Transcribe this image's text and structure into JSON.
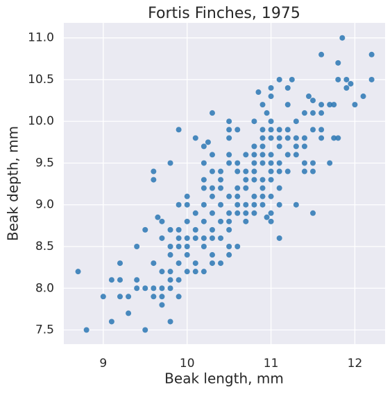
{
  "chart_data": {
    "type": "scatter",
    "title": "Fortis Finches, 1975",
    "x_label": "Beak length, mm",
    "y_label": "Beak depth, mm",
    "color": "#2a77b4",
    "grid": true,
    "xlim": [
      8.53,
      12.36
    ],
    "ylim": [
      7.33,
      11.18
    ],
    "xticks": [
      9,
      10,
      11,
      12
    ],
    "yticks": [
      7.5,
      {
        "value": 8,
        "label": "8.0"
      },
      8.5,
      {
        "value": 9,
        "label": "9.0"
      },
      9.5,
      {
        "value": 10,
        "label": "10.0"
      },
      10.5,
      {
        "value": 11,
        "label": "11.0"
      }
    ],
    "x": [
      8.7,
      8.8,
      9.0,
      9.1,
      9.1,
      9.2,
      9.2,
      9.2,
      9.3,
      9.3,
      9.4,
      9.4,
      9.4,
      9.5,
      9.5,
      9.5,
      9.6,
      9.6,
      9.6,
      9.6,
      9.6,
      9.65,
      9.7,
      9.7,
      9.7,
      9.7,
      9.7,
      9.7,
      9.8,
      9.8,
      9.8,
      9.8,
      9.8,
      9.8,
      9.8,
      9.8,
      9.9,
      9.9,
      9.9,
      9.9,
      9.9,
      9.9,
      9.9,
      9.9,
      10.0,
      10.0,
      10.0,
      10.0,
      10.0,
      10.0,
      10.0,
      10.1,
      10.1,
      10.1,
      10.1,
      10.1,
      10.1,
      10.2,
      10.2,
      10.2,
      10.2,
      10.2,
      10.2,
      10.2,
      10.2,
      10.2,
      10.25,
      10.3,
      10.3,
      10.3,
      10.3,
      10.3,
      10.3,
      10.3,
      10.3,
      10.3,
      10.3,
      10.4,
      10.4,
      10.4,
      10.4,
      10.4,
      10.4,
      10.4,
      10.5,
      10.5,
      10.5,
      10.5,
      10.5,
      10.5,
      10.5,
      10.5,
      10.5,
      10.5,
      10.5,
      10.6,
      10.6,
      10.6,
      10.6,
      10.6,
      10.6,
      10.6,
      10.6,
      10.7,
      10.7,
      10.7,
      10.7,
      10.7,
      10.7,
      10.7,
      10.8,
      10.8,
      10.8,
      10.8,
      10.8,
      10.8,
      10.8,
      10.8,
      10.8,
      10.85,
      10.9,
      10.9,
      10.9,
      10.9,
      10.9,
      10.9,
      10.9,
      10.9,
      10.9,
      10.9,
      10.95,
      10.95,
      11.0,
      11.0,
      11.0,
      11.0,
      11.0,
      11.0,
      11.0,
      11.0,
      11.0,
      11.0,
      11.0,
      11.0,
      11.1,
      11.1,
      11.1,
      11.1,
      11.1,
      11.1,
      11.1,
      11.1,
      11.1,
      11.2,
      11.2,
      11.2,
      11.2,
      11.2,
      11.2,
      11.25,
      11.3,
      11.3,
      11.3,
      11.3,
      11.3,
      11.4,
      11.4,
      11.4,
      11.4,
      11.45,
      11.5,
      11.4,
      11.5,
      11.5,
      11.5,
      11.5,
      11.5,
      11.6,
      11.6,
      11.6,
      11.6,
      11.6,
      11.7,
      11.7,
      11.75,
      11.8,
      11.8,
      11.85,
      11.75,
      11.9,
      11.9,
      11.95,
      11.8,
      12.0,
      12.1,
      12.2,
      12.2
    ],
    "y": [
      8.2,
      7.5,
      7.9,
      7.6,
      8.1,
      8.3,
      8.1,
      7.9,
      7.9,
      7.7,
      8.5,
      8.1,
      8.0,
      8.7,
      8.0,
      7.5,
      9.4,
      9.3,
      8.3,
      8.0,
      7.9,
      8.85,
      8.8,
      8.0,
      7.9,
      7.8,
      8.2,
      8.6,
      9.5,
      8.7,
      8.5,
      8.4,
      8.2,
      8.1,
      8.0,
      7.6,
      9.9,
      9.0,
      8.7,
      8.6,
      8.5,
      8.3,
      8.1,
      7.9,
      9.1,
      9.0,
      8.6,
      8.5,
      8.4,
      8.2,
      8.8,
      9.8,
      8.9,
      8.7,
      8.6,
      8.3,
      8.2,
      9.7,
      9.5,
      9.3,
      9.2,
      9.0,
      8.8,
      8.6,
      8.5,
      8.2,
      9.75,
      10.1,
      9.6,
      9.4,
      9.2,
      9.1,
      8.9,
      8.7,
      8.6,
      8.4,
      8.3,
      9.4,
      9.3,
      9.2,
      9.0,
      8.8,
      8.6,
      8.3,
      10.0,
      9.9,
      9.8,
      9.6,
      9.5,
      9.1,
      8.9,
      8.8,
      8.7,
      8.5,
      8.4,
      9.9,
      9.5,
      9.4,
      9.2,
      9.1,
      9.0,
      8.9,
      8.5,
      9.6,
      9.4,
      9.3,
      9.2,
      9.0,
      8.9,
      8.8,
      10.0,
      9.7,
      9.6,
      9.5,
      9.4,
      9.3,
      9.1,
      9.0,
      8.9,
      10.35,
      10.2,
      9.9,
      9.8,
      9.7,
      9.6,
      9.5,
      9.3,
      9.2,
      9.1,
      9.0,
      10.1,
      8.85,
      10.4,
      10.3,
      10.0,
      9.9,
      9.8,
      9.6,
      9.5,
      9.4,
      9.3,
      9.1,
      8.9,
      8.8,
      10.5,
      9.9,
      9.8,
      9.7,
      9.5,
      9.4,
      9.2,
      9.0,
      8.6,
      10.4,
      10.2,
      9.9,
      9.8,
      9.6,
      9.4,
      10.5,
      10.0,
      9.8,
      9.7,
      9.6,
      9.0,
      9.8,
      9.7,
      9.5,
      9.4,
      10.3,
      10.25,
      10.1,
      10.1,
      9.9,
      9.5,
      9.4,
      8.9,
      10.8,
      10.2,
      10.1,
      9.9,
      9.8,
      10.2,
      9.5,
      10.2,
      10.5,
      9.8,
      11.0,
      9.8,
      10.4,
      10.5,
      10.45,
      10.7,
      10.2,
      10.3,
      10.8,
      10.5
    ]
  }
}
